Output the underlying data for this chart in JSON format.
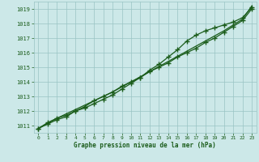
{
  "title": "Graphe pression niveau de la mer (hPa)",
  "bg_color": "#cce8e8",
  "grid_color": "#99c4c4",
  "line_color": "#1a5c1a",
  "xlim": [
    -0.5,
    23.5
  ],
  "ylim": [
    1010.5,
    1019.5
  ],
  "yticks": [
    1011,
    1012,
    1013,
    1014,
    1015,
    1016,
    1017,
    1018,
    1019
  ],
  "xticks": [
    0,
    1,
    2,
    3,
    4,
    5,
    6,
    7,
    8,
    9,
    10,
    11,
    12,
    13,
    14,
    15,
    16,
    17,
    18,
    19,
    20,
    21,
    22,
    23
  ],
  "line1_x": [
    0,
    1,
    2,
    3,
    4,
    5,
    6,
    7,
    8,
    9,
    10,
    11,
    12,
    13,
    14,
    15,
    16,
    17,
    18,
    19,
    20,
    21,
    22,
    23
  ],
  "line1_y": [
    1010.8,
    1011.2,
    1011.5,
    1011.7,
    1012.0,
    1012.3,
    1012.7,
    1013.0,
    1013.3,
    1013.7,
    1014.0,
    1014.3,
    1014.7,
    1015.0,
    1015.3,
    1015.7,
    1016.0,
    1016.3,
    1016.7,
    1017.0,
    1017.4,
    1017.8,
    1018.2,
    1019.0
  ],
  "line1_has_markers": true,
  "line2_x": [
    0,
    1,
    2,
    3,
    4,
    5,
    6,
    7,
    8,
    9,
    10,
    11,
    12,
    13,
    14,
    15,
    16,
    17,
    18,
    19,
    20,
    21,
    22,
    23
  ],
  "line2_y": [
    1010.8,
    1011.1,
    1011.4,
    1011.6,
    1012.0,
    1012.2,
    1012.5,
    1012.8,
    1013.1,
    1013.5,
    1013.9,
    1014.3,
    1014.8,
    1015.2,
    1015.7,
    1016.2,
    1016.8,
    1017.2,
    1017.5,
    1017.7,
    1017.9,
    1018.1,
    1018.4,
    1019.1
  ],
  "line2_has_markers": true,
  "line3_x": [
    0,
    2,
    4,
    6,
    8,
    10,
    12,
    14,
    16,
    18,
    20,
    22,
    23
  ],
  "line3_y": [
    1010.8,
    1011.5,
    1012.1,
    1012.7,
    1013.3,
    1014.0,
    1014.7,
    1015.4,
    1016.1,
    1016.8,
    1017.5,
    1018.3,
    1019.2
  ],
  "line3_has_markers": false
}
